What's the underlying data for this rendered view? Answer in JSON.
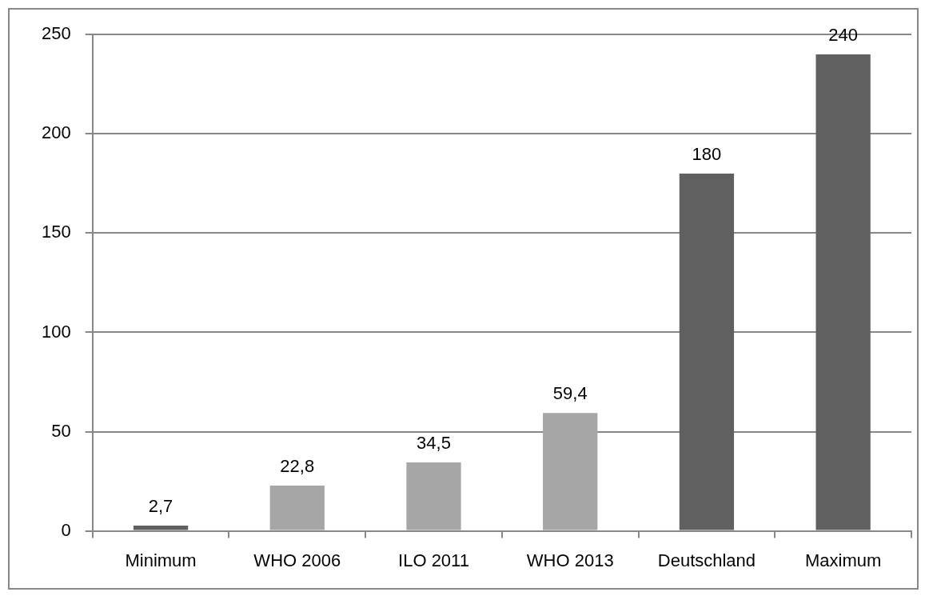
{
  "chart_data": {
    "type": "bar",
    "categories": [
      "Minimum",
      "WHO 2006",
      "ILO 2011",
      "WHO 2013",
      "Deutschland",
      "Maximum"
    ],
    "values": [
      2.7,
      22.8,
      34.5,
      59.4,
      180,
      240
    ],
    "colors": [
      "#606060",
      "#a6a6a6",
      "#a6a6a6",
      "#a6a6a6",
      "#606060",
      "#606060"
    ],
    "value_labels": [
      "2,7",
      "22,8",
      "34,5",
      "59,4",
      "180",
      "240"
    ],
    "ylim": [
      0,
      250
    ],
    "yticks": [
      0,
      50,
      100,
      150,
      200,
      250
    ],
    "grid": "y"
  }
}
